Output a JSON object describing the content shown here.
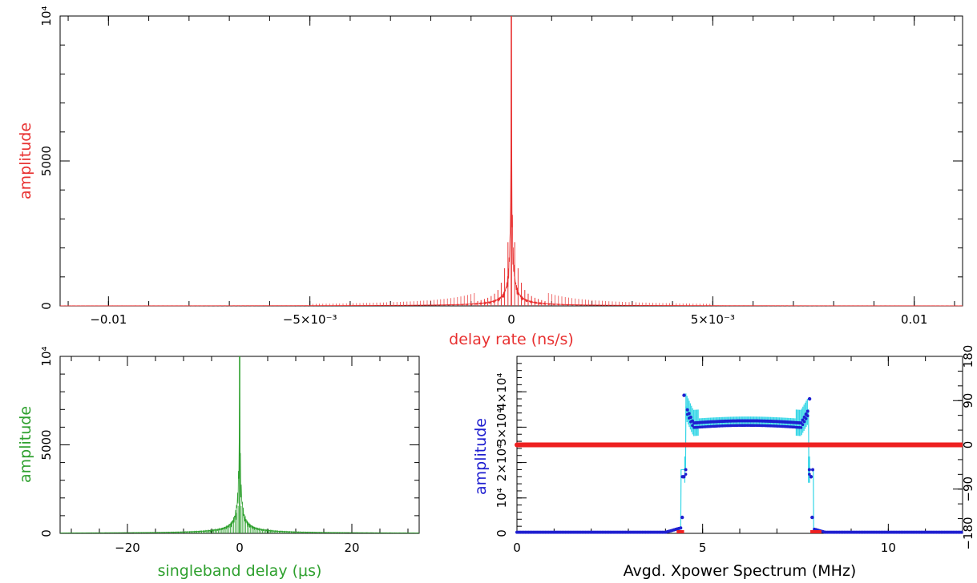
{
  "chart_data": [
    {
      "type": "line",
      "xlabel": "delay rate (ns/s)",
      "ylabel": "amplitude",
      "label_color": "#e83030",
      "line_color": "#e83030",
      "xlim": [
        -0.0112,
        0.0112
      ],
      "ylim": [
        0,
        10000
      ],
      "x_ticks": [
        "−0.01",
        "−5×10⁻³",
        "0",
        "5×10⁻³",
        "0.01"
      ],
      "y_ticks": [
        "0",
        "5000",
        "10⁴"
      ],
      "peak": {
        "x": 0,
        "y": 10000
      },
      "sidelobe_levels": [
        2200,
        1300,
        800,
        550,
        420,
        340,
        280,
        240,
        200,
        170
      ]
    },
    {
      "type": "line",
      "xlabel": "singleband delay (μs)",
      "ylabel": "amplitude",
      "label_color": "#2ea02e",
      "line_color": "#2ea02e",
      "xlim": [
        -32,
        32
      ],
      "ylim": [
        0,
        10000
      ],
      "x_ticks": [
        "−20",
        "0",
        "20"
      ],
      "y_ticks": [
        "0",
        "5000",
        "10⁴"
      ],
      "peak": {
        "x": 0,
        "y": 10000
      }
    },
    {
      "type": "scatter",
      "xlabel": "Avgd. Xpower Spectrum (MHz)",
      "ylabel": "amplitude",
      "label_color": "#1f1fd0",
      "xlim": [
        0,
        12
      ],
      "ylim": [
        0,
        50000
      ],
      "x_ticks": [
        "0",
        "5",
        "10"
      ],
      "y_ticks": [
        "0",
        "10⁴",
        "2×10⁴",
        "3×10⁴",
        "4×10⁴"
      ],
      "right_ticks": [
        "−180",
        "−90",
        "0",
        "90",
        "180"
      ],
      "phase_ylim": [
        -180,
        180
      ],
      "band_edges_mhz": [
        4.5,
        7.9
      ],
      "amplitude_level": 31000,
      "edge_spike": 37000,
      "phase_deg": 0,
      "amp_color": "#1f1fd0",
      "fit_color": "#33d6e6",
      "phase_color": "#ee2020"
    }
  ]
}
